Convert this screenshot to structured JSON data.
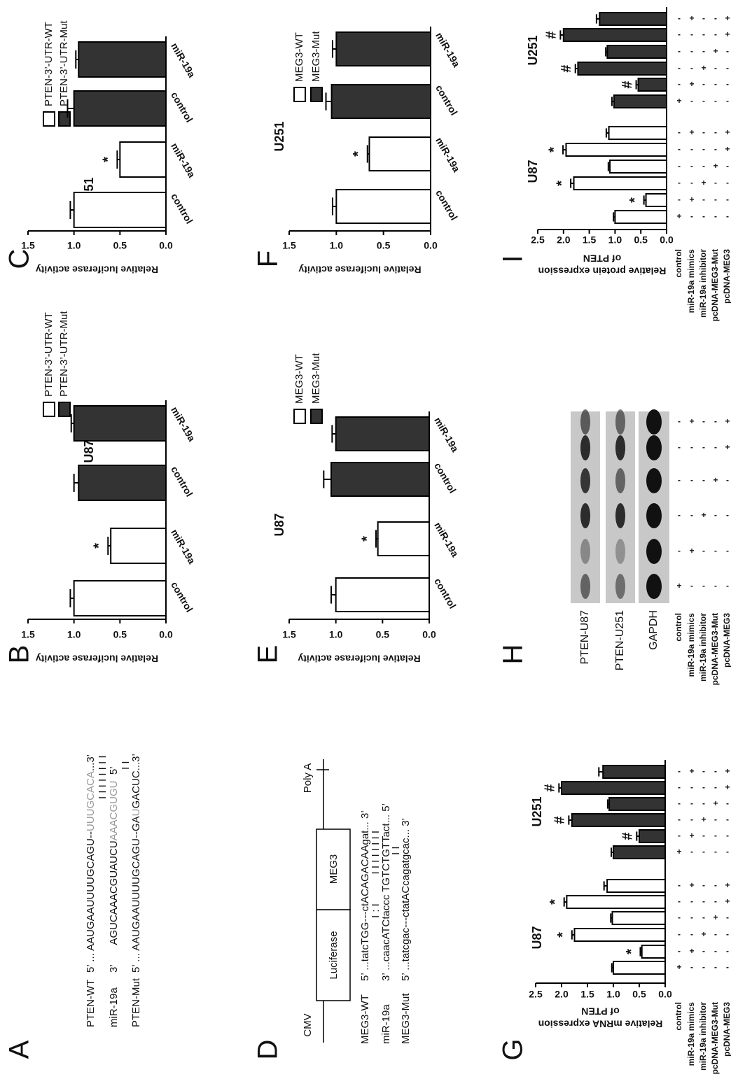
{
  "chart_data": [
    {
      "type": "bar",
      "label": "B",
      "title": "U87",
      "ylabel": "Relative luciferase activity",
      "categories": [
        "control",
        "miR-19a"
      ],
      "legend": true,
      "series": [
        {
          "name": "PTEN-3’-UTR-WT",
          "color": "#ffffff",
          "values": [
            1.0,
            0.6
          ],
          "errors": [
            0.04,
            0.03
          ],
          "significance": [
            null,
            "*"
          ]
        },
        {
          "name": "PTEN-3’-UTR-Mut",
          "color": "#333333",
          "values": [
            0.95,
            1.0
          ],
          "errors": [
            0.05,
            0.03
          ],
          "significance": [
            null,
            null
          ]
        }
      ],
      "ylim": [
        0,
        1.5
      ],
      "yticks": [
        {
          "value": 0,
          "label": "0.0"
        },
        {
          "value": 0.5,
          "label": "0.5"
        },
        {
          "value": 1,
          "label": "1.0"
        },
        {
          "value": 1.5,
          "label": "1.5"
        }
      ]
    },
    {
      "type": "bar",
      "label": "C",
      "title": "U251",
      "ylabel": "Relative luciferase activity",
      "categories": [
        "control",
        "miR-19a"
      ],
      "legend": true,
      "series": [
        {
          "name": "PTEN-3’-UTR-WT",
          "color": "#ffffff",
          "values": [
            1.0,
            0.5
          ],
          "errors": [
            0.04,
            0.03
          ],
          "significance": [
            null,
            "*"
          ]
        },
        {
          "name": "PTEN-3’-UTR-Mut",
          "color": "#333333",
          "values": [
            1.0,
            0.95
          ],
          "errors": [
            0.07,
            0.03
          ],
          "significance": [
            null,
            null
          ]
        }
      ],
      "ylim": [
        0,
        1.5
      ],
      "yticks": [
        {
          "value": 0,
          "label": "0.0"
        },
        {
          "value": 0.5,
          "label": "0.5"
        },
        {
          "value": 1,
          "label": "1.0"
        },
        {
          "value": 1.5,
          "label": "1.5"
        }
      ]
    },
    {
      "type": "bar",
      "label": "E",
      "title": "U87",
      "ylabel": "Relative luciferase activity",
      "categories": [
        "control",
        "miR-19a"
      ],
      "legend": true,
      "series": [
        {
          "name": "MEG3-WT",
          "color": "#ffffff",
          "values": [
            1.0,
            0.55
          ],
          "errors": [
            0.05,
            0.02
          ],
          "significance": [
            null,
            "*"
          ]
        },
        {
          "name": "MEG3-Mut",
          "color": "#333333",
          "values": [
            1.05,
            1.0
          ],
          "errors": [
            0.08,
            0.04
          ],
          "significance": [
            null,
            null
          ]
        }
      ],
      "ylim": [
        0,
        1.5
      ],
      "yticks": [
        {
          "value": 0,
          "label": "0.0"
        },
        {
          "value": 0.5,
          "label": "0.5"
        },
        {
          "value": 1,
          "label": "1.0"
        },
        {
          "value": 1.5,
          "label": "1.5"
        }
      ]
    },
    {
      "type": "bar",
      "label": "F",
      "title": "U251",
      "ylabel": "Relative luciferase activity",
      "categories": [
        "control",
        "miR-19a"
      ],
      "legend": true,
      "series": [
        {
          "name": "MEG3-WT",
          "color": "#ffffff",
          "values": [
            1.0,
            0.65
          ],
          "errors": [
            0.04,
            0.02
          ],
          "significance": [
            null,
            "*"
          ]
        },
        {
          "name": "MEG3-Mut",
          "color": "#333333",
          "values": [
            1.05,
            1.0
          ],
          "errors": [
            0.06,
            0.04
          ],
          "significance": [
            null,
            null
          ]
        }
      ],
      "ylim": [
        0,
        1.5
      ],
      "yticks": [
        {
          "value": 0,
          "label": "0.0"
        },
        {
          "value": 0.5,
          "label": "0.5"
        },
        {
          "value": 1,
          "label": "1.0"
        },
        {
          "value": 1.5,
          "label": "1.5"
        }
      ]
    },
    {
      "type": "bar",
      "label": "G",
      "ylabel": [
        "Relative mRNA expression",
        "of PTEN"
      ],
      "series": [
        {
          "name": "U87",
          "color": "#ffffff",
          "values": [
            1.0,
            0.45,
            1.75,
            1.02,
            1.9,
            1.12
          ],
          "errors": [
            0.03,
            0.03,
            0.05,
            0.03,
            0.05,
            0.06
          ],
          "significance": [
            null,
            "*",
            "*",
            null,
            "*",
            null
          ]
        },
        {
          "name": "U251",
          "color": "#333333",
          "values": [
            1.0,
            0.5,
            1.8,
            1.08,
            2.0,
            1.2
          ],
          "errors": [
            0.04,
            0.05,
            0.06,
            0.03,
            0.05,
            0.08
          ],
          "significance": [
            null,
            "#",
            "#",
            null,
            "#",
            null
          ]
        }
      ],
      "ylim": [
        0,
        2.5
      ],
      "yticks": [
        {
          "value": 0,
          "label": "0.0"
        },
        {
          "value": 0.5,
          "label": "0.5"
        },
        {
          "value": 1,
          "label": "1.0"
        },
        {
          "value": 1.5,
          "label": "1.5"
        },
        {
          "value": 2,
          "label": "2.0"
        },
        {
          "value": 2.5,
          "label": "2.5"
        }
      ],
      "conditions": {
        "rows": [
          "control",
          "miR-19a mimics",
          "miR-19a inhibitor",
          "pcDNA-MEG3-Mut",
          "pcDNA-MEG3"
        ],
        "signs": [
          [
            "+",
            "-",
            "-",
            "-",
            "-",
            "-",
            "+",
            "-",
            "-",
            "-",
            "-",
            "-"
          ],
          [
            "-",
            "+",
            "-",
            "-",
            "-",
            "+",
            "-",
            "+",
            "-",
            "-",
            "-",
            "+"
          ],
          [
            "-",
            "-",
            "+",
            "-",
            "-",
            "-",
            "-",
            "-",
            "+",
            "-",
            "-",
            "-"
          ],
          [
            "-",
            "-",
            "-",
            "+",
            "-",
            "-",
            "-",
            "-",
            "-",
            "+",
            "-",
            "-"
          ],
          [
            "-",
            "-",
            "-",
            "-",
            "+",
            "+",
            "-",
            "-",
            "-",
            "-",
            "+",
            "+"
          ]
        ]
      }
    },
    {
      "type": "bar",
      "label": "I",
      "ylabel": [
        "Relative protein expression",
        "of PTEN"
      ],
      "series": [
        {
          "name": "U87",
          "color": "#ffffff",
          "values": [
            1.0,
            0.4,
            1.8,
            1.1,
            1.95,
            1.12
          ],
          "errors": [
            0.03,
            0.04,
            0.06,
            0.03,
            0.06,
            0.05
          ],
          "significance": [
            null,
            "*",
            "*",
            null,
            "*",
            null
          ]
        },
        {
          "name": "U251",
          "color": "#333333",
          "values": [
            1.02,
            0.55,
            1.72,
            1.15,
            2.0,
            1.3
          ],
          "errors": [
            0.04,
            0.04,
            0.05,
            0.03,
            0.06,
            0.06
          ],
          "significance": [
            null,
            "#",
            "#",
            null,
            "#",
            null
          ]
        }
      ],
      "ylim": [
        0,
        2.5
      ],
      "yticks": [
        {
          "value": 0,
          "label": "0.0"
        },
        {
          "value": 0.5,
          "label": "0.5"
        },
        {
          "value": 1,
          "label": "1.0"
        },
        {
          "value": 1.5,
          "label": "1.5"
        },
        {
          "value": 2,
          "label": "2.0"
        },
        {
          "value": 2.5,
          "label": "2.5"
        }
      ],
      "conditions": {
        "rows": [
          "control",
          "miR-19a mimics",
          "miR-19a inhibitor",
          "pcDNA-MEG3-Mut",
          "pcDNA-MEG3"
        ],
        "signs": [
          [
            "+",
            "-",
            "-",
            "-",
            "-",
            "-",
            "+",
            "-",
            "-",
            "-",
            "-",
            "-"
          ],
          [
            "-",
            "+",
            "-",
            "-",
            "-",
            "+",
            "-",
            "+",
            "-",
            "-",
            "-",
            "+"
          ],
          [
            "-",
            "-",
            "+",
            "-",
            "-",
            "-",
            "-",
            "-",
            "+",
            "-",
            "-",
            "-"
          ],
          [
            "-",
            "-",
            "-",
            "+",
            "-",
            "-",
            "-",
            "-",
            "-",
            "+",
            "-",
            "-"
          ],
          [
            "-",
            "-",
            "-",
            "-",
            "+",
            "+",
            "-",
            "-",
            "-",
            "-",
            "+",
            "+"
          ]
        ]
      }
    }
  ],
  "panel_a": {
    "label": "A",
    "rows": [
      {
        "name": "PTEN-WT",
        "segments": [
          {
            "text": "5’ ... AAUGAAUUUUGCAGU--"
          },
          {
            "text": "UUUGCACA",
            "highlight": true
          },
          {
            "text": "...3’"
          }
        ]
      },
      {
        "name": "miR-19a",
        "segments": [
          {
            "text": "3’       AGUCAAACGUAUCU"
          },
          {
            "text": "AAACGUGU",
            "highlight": true
          },
          {
            "text": "  5’"
          }
        ]
      },
      {
        "name": "PTEN-Mut",
        "segments": [
          {
            "text": "5’ ... AAUGAAUUUUGCAGU--GA"
          },
          {
            "text": "U",
            "highlight": true
          },
          {
            "text": "GACUC...3’"
          }
        ]
      }
    ],
    "pairings": [
      "I I I I I I I I",
      "I I"
    ]
  },
  "panel_d": {
    "label": "D",
    "promoter": "CMV",
    "reporter": "Luciferase",
    "insert": "MEG3",
    "polya": "Poly A",
    "rows": [
      {
        "name": "MEG3-WT",
        "sequence": "5’ ...tatcTGG---ctACAGACAAgat... 3’"
      },
      {
        "name": "miR-19a",
        "sequence": "3’ ...caacATCtaccc TGTCTGTTact... 5’"
      },
      {
        "name": "MEG3-Mut",
        "sequence": "5’ ...tatcgac---ctatACcagatgcac... 3’"
      }
    ],
    "pairings": [
      "I : I          I I I I I I I I",
      "I I"
    ]
  },
  "panel_h": {
    "label": "H",
    "blots": [
      "PTEN-U87",
      "PTEN-U251",
      "GAPDH"
    ],
    "conditions": {
      "rows": [
        "control",
        "miR-19a mimics",
        "miR-19a inhibitor",
        "pcDNA-MEG3-Mut",
        "pcDNA-MEG3"
      ],
      "signs": [
        [
          "+",
          "-",
          "-",
          "-",
          "-",
          "-"
        ],
        [
          "-",
          "+",
          "-",
          "-",
          "-",
          "+"
        ],
        [
          "-",
          "-",
          "+",
          "-",
          "-",
          "-"
        ],
        [
          "-",
          "-",
          "-",
          "+",
          "-",
          "-"
        ],
        [
          "-",
          "-",
          "-",
          "-",
          "+",
          "+"
        ]
      ]
    }
  }
}
